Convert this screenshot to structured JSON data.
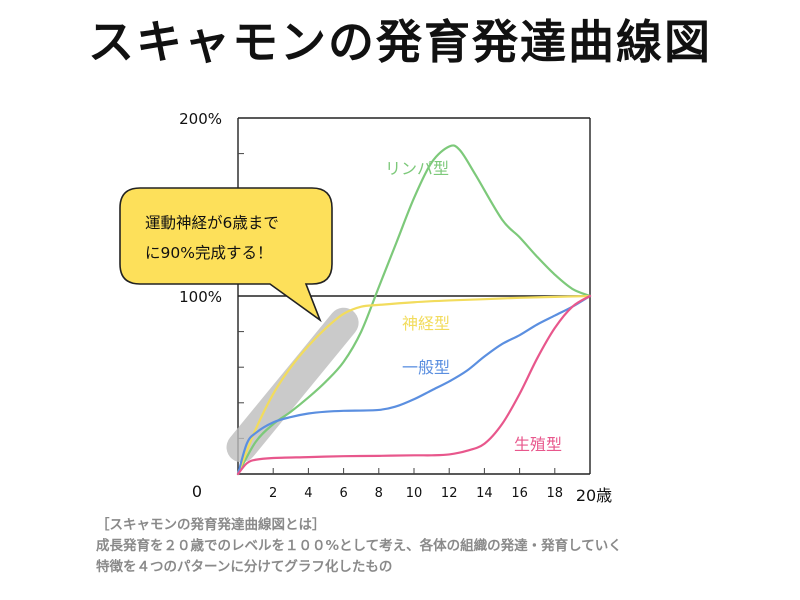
{
  "title": "スキャモンの発育発達曲線図",
  "callout": {
    "line1": "運動神経が6歳まで",
    "line2": "に90%完成する！"
  },
  "caption": {
    "line1": "［スキャモンの発育発達曲線図とは］",
    "line2": "成長発育を２０歳でのレベルを１００%として考え、各体の組織の発達・発育していく",
    "line3": "特徴を４つのパターンに分けてグラフ化したもの"
  },
  "colors": {
    "lymph": "#7dc97a",
    "neural": "#f2dc5d",
    "general": "#5b8fe0",
    "reproductive": "#e8578c",
    "callout_fill": "#fde05a",
    "highlight": "#bdbdbd"
  },
  "chart_data": {
    "type": "line",
    "title": "スキャモンの発育発達曲線図",
    "xlim": [
      0,
      20
    ],
    "ylim": [
      0,
      200
    ],
    "x_ticks": [
      2,
      4,
      6,
      8,
      10,
      12,
      14,
      16,
      18
    ],
    "x_tick_labels": [
      "2",
      "4",
      "6",
      "8",
      "10",
      "12",
      "14",
      "16",
      "18"
    ],
    "x_end_label": "20歳",
    "origin_label": "0",
    "y_tick_labels": [
      {
        "value": 200,
        "label": "200%"
      },
      {
        "value": 100,
        "label": "100%"
      }
    ],
    "grid": false,
    "series": [
      {
        "name": "リンパ型",
        "color": "#7dc97a",
        "points": [
          [
            0,
            0
          ],
          [
            1,
            18
          ],
          [
            2,
            28
          ],
          [
            3,
            35
          ],
          [
            4,
            43
          ],
          [
            5,
            52
          ],
          [
            6,
            63
          ],
          [
            7,
            80
          ],
          [
            8,
            105
          ],
          [
            9,
            130
          ],
          [
            10,
            155
          ],
          [
            11,
            175
          ],
          [
            12,
            184
          ],
          [
            12.6,
            182
          ],
          [
            13.5,
            168
          ],
          [
            15,
            143
          ],
          [
            16,
            133
          ],
          [
            17,
            122
          ],
          [
            18,
            112
          ],
          [
            19,
            104
          ],
          [
            20,
            100
          ]
        ]
      },
      {
        "name": "神経型",
        "color": "#f2dc5d",
        "points": [
          [
            0,
            0
          ],
          [
            1,
            25
          ],
          [
            2,
            45
          ],
          [
            3,
            60
          ],
          [
            4,
            72
          ],
          [
            5,
            82
          ],
          [
            6,
            90
          ],
          [
            7,
            94
          ],
          [
            8,
            95
          ],
          [
            10,
            96.5
          ],
          [
            12,
            97.5
          ],
          [
            14,
            98.2
          ],
          [
            16,
            99
          ],
          [
            18,
            99.5
          ],
          [
            20,
            100
          ]
        ]
      },
      {
        "name": "一般型",
        "color": "#5b8fe0",
        "points": [
          [
            0,
            0
          ],
          [
            0.5,
            17
          ],
          [
            1,
            23
          ],
          [
            2,
            29
          ],
          [
            3,
            32
          ],
          [
            4,
            34
          ],
          [
            5,
            35
          ],
          [
            6,
            35.5
          ],
          [
            8,
            36
          ],
          [
            9,
            38
          ],
          [
            10,
            42
          ],
          [
            11,
            47
          ],
          [
            12,
            52
          ],
          [
            13,
            58
          ],
          [
            14,
            66
          ],
          [
            15,
            73
          ],
          [
            16,
            78
          ],
          [
            17,
            84
          ],
          [
            18,
            89
          ],
          [
            19,
            94
          ],
          [
            20,
            100
          ]
        ]
      },
      {
        "name": "生殖型",
        "color": "#e8578c",
        "points": [
          [
            0,
            0
          ],
          [
            0.5,
            6
          ],
          [
            1,
            8
          ],
          [
            2,
            9
          ],
          [
            4,
            9.5
          ],
          [
            6,
            10
          ],
          [
            8,
            10.2
          ],
          [
            10,
            10.5
          ],
          [
            11,
            10.5
          ],
          [
            12,
            11
          ],
          [
            13,
            13
          ],
          [
            14,
            17
          ],
          [
            15,
            28
          ],
          [
            16,
            45
          ],
          [
            17,
            65
          ],
          [
            18,
            82
          ],
          [
            19,
            94
          ],
          [
            20,
            100
          ]
        ]
      }
    ]
  }
}
